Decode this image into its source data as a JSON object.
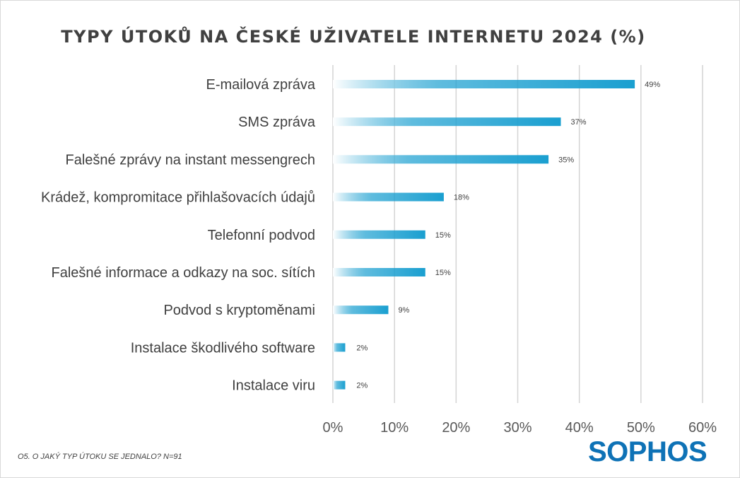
{
  "title": "TYPY ÚTOKŮ NA ČESKÉ UŽIVATELE INTERNETU 2024 (%)",
  "footnote": "O5. O JAKÝ TYP ÚTOKU SE JEDNALO? N=91",
  "logo": "SOPHOS",
  "colors": {
    "bar_start": "#ffffff",
    "bar_end": "#1a9fd0",
    "logo": "#0e72b6",
    "grid": "#d4d4d4"
  },
  "chart_data": {
    "type": "bar",
    "orientation": "horizontal",
    "categories": [
      "E-mailová zpráva",
      "SMS zpráva",
      "Falešné zprávy na instant messengrech",
      "Krádež, kompromitace přihlašovacích údajů",
      "Telefonní podvod",
      "Falešné informace a odkazy na soc. sítích",
      "Podvod s kryptoměnami",
      "Instalace škodlivého software",
      "Instalace viru"
    ],
    "values": [
      49,
      37,
      35,
      18,
      15,
      15,
      9,
      2,
      2
    ],
    "data_labels": [
      "49%",
      "37%",
      "35%",
      "18%",
      "15%",
      "15%",
      "9%",
      "2%",
      "2%"
    ],
    "xlim": [
      0,
      60
    ],
    "xticks": [
      0,
      10,
      20,
      30,
      40,
      50,
      60
    ],
    "xtick_labels": [
      "0%",
      "10%",
      "20%",
      "30%",
      "40%",
      "50%",
      "60%"
    ],
    "grid": true
  }
}
